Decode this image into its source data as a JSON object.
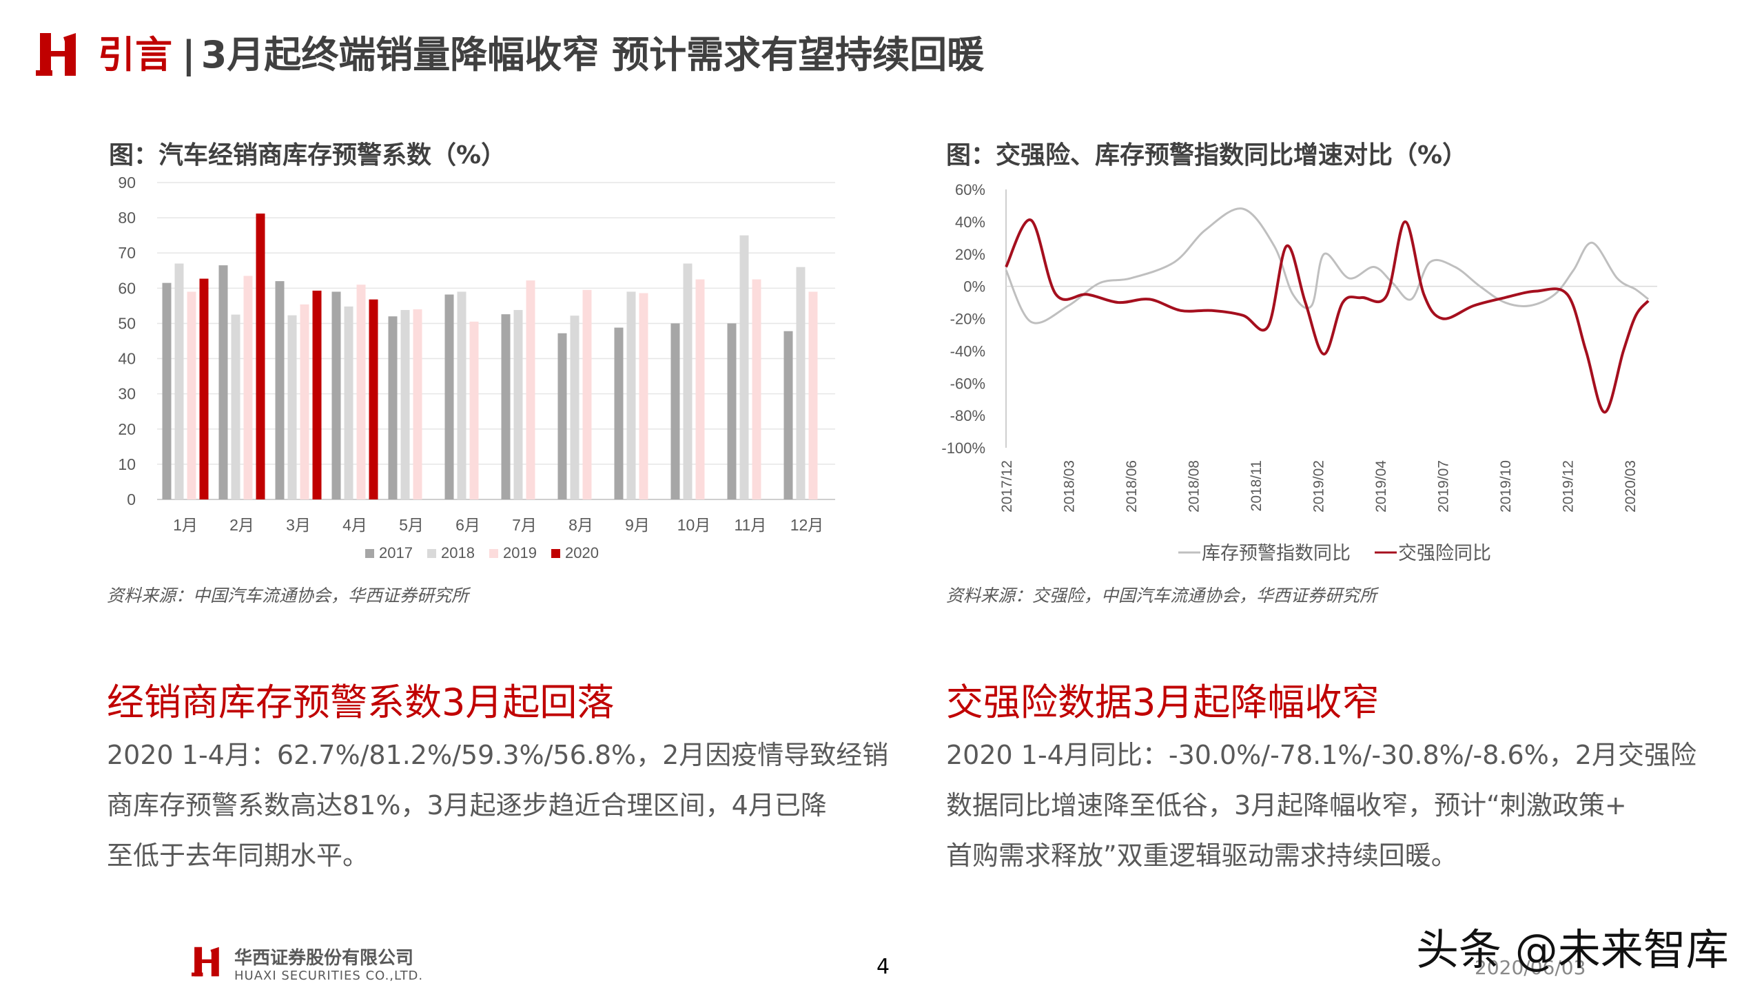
{
  "header": {
    "accent": "引言",
    "separator": "|",
    "title": "3月起终端销量降幅收窄 预计需求有望持续回暖"
  },
  "left_panel": {
    "title": "图：汽车经销商库存预警系数（%）",
    "source": "资料来源：中国汽车流通协会，华西证券研究所",
    "heading": "经销商库存预警系数3月起回落",
    "body_lines": [
      "2020 1-4月：62.7%/81.2%/59.3%/56.8%，2月因疫情导致经销",
      "商库存预警系数高达81%，3月起逐步趋近合理区间，4月已降",
      "至低于去年同期水平。"
    ]
  },
  "right_panel": {
    "title": "图：交强险、库存预警指数同比增速对比（%）",
    "source": "资料来源：交强险，中国汽车流通协会，华西证券研究所",
    "heading": "交强险数据3月起降幅收窄",
    "body_lines": [
      "2020 1-4月同比：-30.0%/-78.1%/-30.8%/-8.6%，2月交强险",
      "数据同比增速降至低谷，3月起降幅收窄，预计“刺激政策+",
      "首购需求释放”双重逻辑驱动需求持续回暖。"
    ]
  },
  "footer": {
    "company_cn": "华西证券股份有限公司",
    "company_en": "HUAXI SECURITIES CO.,LTD.",
    "page_number": "4",
    "date": "2020/06/03",
    "watermark": "头条 @未来智库"
  },
  "colors": {
    "brand_red": "#c00000",
    "s2017": "#a6a6a6",
    "s2018": "#d9d9d9",
    "s2019": "#fcdcdc",
    "s2020": "#c00000",
    "line_inventory": "#bfbfbf",
    "line_insurance": "#a50f1e"
  },
  "chart_data": [
    {
      "type": "bar",
      "categories": [
        "1月",
        "2月",
        "3月",
        "4月",
        "5月",
        "6月",
        "7月",
        "8月",
        "9月",
        "10月",
        "11月",
        "12月"
      ],
      "yticks": [
        "0",
        "10",
        "20",
        "30",
        "40",
        "50",
        "60",
        "70",
        "80",
        "90"
      ],
      "ylim": [
        0,
        90
      ],
      "grid": true,
      "legend_position": "bottom",
      "series": [
        {
          "name": "2017",
          "values": [
            61.5,
            66.5,
            62,
            59,
            52,
            58.2,
            52.6,
            47.2,
            48.8,
            50,
            50,
            47.8
          ]
        },
        {
          "name": "2018",
          "values": [
            67,
            52.5,
            52.3,
            54.8,
            53.8,
            59,
            53.8,
            52.2,
            59,
            67,
            75,
            66
          ]
        },
        {
          "name": "2019",
          "values": [
            59,
            63.5,
            55.4,
            61,
            54,
            50.5,
            62.2,
            59.5,
            58.6,
            62.5,
            62.5,
            59
          ]
        },
        {
          "name": "2020",
          "values": [
            62.7,
            81.2,
            59.3,
            56.8,
            null,
            null,
            null,
            null,
            null,
            null,
            null,
            null
          ]
        }
      ]
    },
    {
      "type": "line",
      "x_labels": [
        "2017/12",
        "2018/03",
        "2018/06",
        "2018/08",
        "2018/11",
        "2019/02",
        "2019/04",
        "2019/07",
        "2019/10",
        "2019/12",
        "2020/03"
      ],
      "yticks": [
        "60%",
        "40%",
        "20%",
        "0%",
        "-20%",
        "-40%",
        "-60%",
        "-80%",
        "-100%"
      ],
      "ylim": [
        -100,
        60
      ],
      "legend_position": "bottom",
      "series": [
        {
          "name": "库存预警指数同比",
          "x": [
            0,
            0.4,
            1,
            1.5,
            2,
            2.7,
            3.2,
            3.8,
            4.3,
            4.6,
            4.9,
            5.1,
            5.5,
            5.9,
            6.2,
            6.5,
            6.8,
            7.2,
            7.6,
            8,
            8.4,
            8.8,
            9.1,
            9.4,
            9.8,
            10.1,
            10.3
          ],
          "y": [
            10,
            -22,
            -12,
            2,
            5,
            15,
            35,
            48,
            25,
            -5,
            -12,
            20,
            5,
            12,
            2,
            -8,
            15,
            12,
            0,
            -10,
            -12,
            -5,
            10,
            27,
            5,
            -2,
            -8
          ]
        },
        {
          "name": "交强险同比",
          "x": [
            0,
            0.4,
            0.8,
            1.3,
            1.8,
            2.3,
            2.8,
            3.3,
            3.8,
            4.2,
            4.5,
            4.8,
            5.1,
            5.4,
            5.7,
            6.1,
            6.4,
            6.7,
            7.0,
            7.5,
            8.0,
            8.5,
            9.0,
            9.3,
            9.6,
            9.9,
            10.1,
            10.3
          ],
          "y": [
            12,
            41,
            -5,
            -5,
            -10,
            -8,
            -15,
            -15,
            -18,
            -25,
            25,
            -10,
            -42,
            -10,
            -7,
            -6,
            40,
            -5,
            -20,
            -12,
            -7,
            -3,
            -5,
            -40,
            -78,
            -40,
            -18,
            -9
          ]
        }
      ]
    }
  ]
}
